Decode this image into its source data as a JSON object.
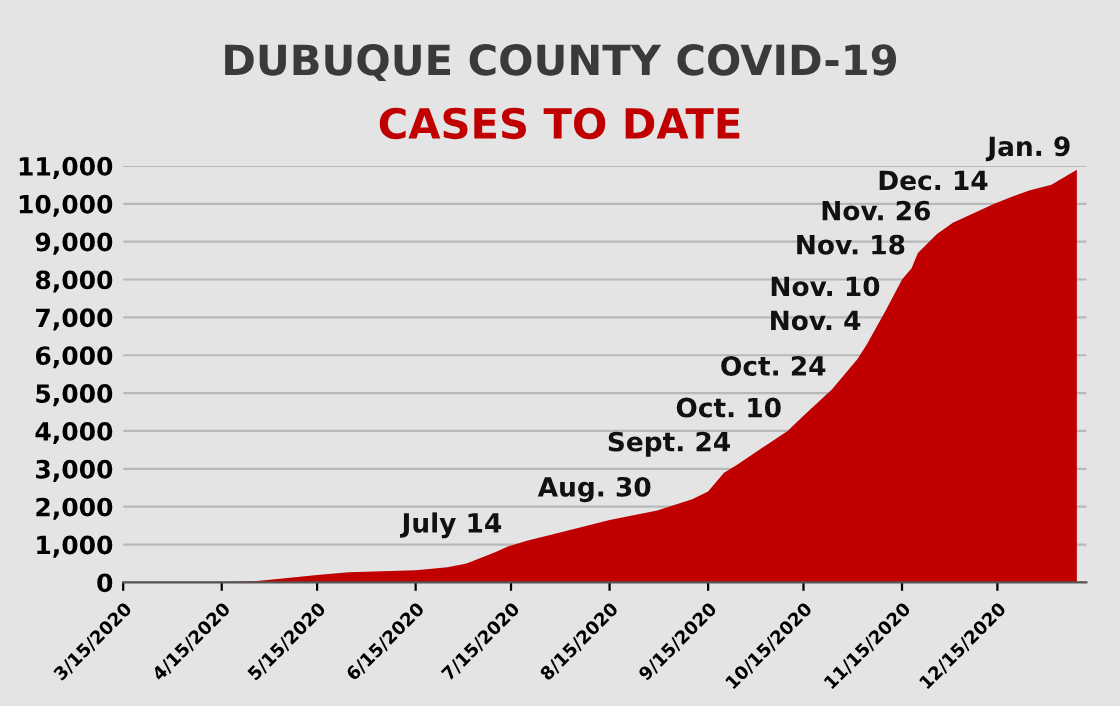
{
  "chart_data": {
    "type": "area",
    "title": "DUBUQUE COUNTY COVID-19",
    "subtitle": "CASES TO DATE",
    "x": [
      "2020-03-15",
      "2020-04-15",
      "2020-04-25",
      "2020-05-01",
      "2020-05-15",
      "2020-05-25",
      "2020-06-15",
      "2020-06-25",
      "2020-07-01",
      "2020-07-10",
      "2020-07-14",
      "2020-07-20",
      "2020-08-01",
      "2020-08-15",
      "2020-08-30",
      "2020-09-10",
      "2020-09-15",
      "2020-09-20",
      "2020-09-24",
      "2020-10-01",
      "2020-10-10",
      "2020-10-15",
      "2020-10-24",
      "2020-11-01",
      "2020-11-04",
      "2020-11-10",
      "2020-11-15",
      "2020-11-18",
      "2020-11-20",
      "2020-11-26",
      "2020-12-01",
      "2020-12-14",
      "2020-12-20",
      "2020-12-25",
      "2021-01-01",
      "2021-01-09"
    ],
    "series": [
      {
        "color": "#c00000",
        "values": [
          0,
          10,
          30,
          80,
          200,
          270,
          320,
          400,
          500,
          800,
          950,
          1100,
          1350,
          1650,
          1900,
          2200,
          2400,
          2900,
          3100,
          3500,
          4000,
          4400,
          5100,
          5900,
          6300,
          7200,
          8000,
          8300,
          8700,
          9200,
          9500,
          10000,
          10200,
          10350,
          10500,
          10900
        ]
      }
    ],
    "xlim": [
      "2020-03-15",
      "2021-01-12"
    ],
    "xticks": [
      {
        "value": "2020-03-15",
        "label": "3/15/2020"
      },
      {
        "value": "2020-04-15",
        "label": "4/15/2020"
      },
      {
        "value": "2020-05-15",
        "label": "5/15/2020"
      },
      {
        "value": "2020-06-15",
        "label": "6/15/2020"
      },
      {
        "value": "2020-07-15",
        "label": "7/15/2020"
      },
      {
        "value": "2020-08-15",
        "label": "8/15/2020"
      },
      {
        "value": "2020-09-15",
        "label": "9/15/2020"
      },
      {
        "value": "2020-10-15",
        "label": "10/15/2020"
      },
      {
        "value": "2020-11-15",
        "label": "11/15/2020"
      },
      {
        "value": "2020-12-15",
        "label": "12/15/2020"
      }
    ],
    "ylim": [
      0,
      11000
    ],
    "yticks": [
      {
        "value": 0,
        "label": "0"
      },
      {
        "value": 1000,
        "label": "1,000"
      },
      {
        "value": 2000,
        "label": "2,000"
      },
      {
        "value": 3000,
        "label": "3,000"
      },
      {
        "value": 4000,
        "label": "4,000"
      },
      {
        "value": 5000,
        "label": "5,000"
      },
      {
        "value": 6000,
        "label": "6,000"
      },
      {
        "value": 7000,
        "label": "7,000"
      },
      {
        "value": 8000,
        "label": "8,000"
      },
      {
        "value": 9000,
        "label": "9,000"
      },
      {
        "value": 10000,
        "label": "10,000"
      },
      {
        "value": 11000,
        "label": "11,000"
      }
    ],
    "grid": "y",
    "legend": false,
    "annotations": [
      {
        "text": "July 14",
        "x": "2020-07-14",
        "y": 950
      },
      {
        "text": "Aug. 30",
        "x": "2020-08-30",
        "y": 1900
      },
      {
        "text": "Sept. 24",
        "x": "2020-09-24",
        "y": 3100
      },
      {
        "text": "Oct. 10",
        "x": "2020-10-10",
        "y": 4000
      },
      {
        "text": "Oct. 24",
        "x": "2020-10-24",
        "y": 5100
      },
      {
        "text": "Nov. 4",
        "x": "2020-11-04",
        "y": 6300
      },
      {
        "text": "Nov. 10",
        "x": "2020-11-10",
        "y": 7200
      },
      {
        "text": "Nov. 18",
        "x": "2020-11-18",
        "y": 8300
      },
      {
        "text": "Nov. 26",
        "x": "2020-11-26",
        "y": 9200
      },
      {
        "text": "Dec. 14",
        "x": "2020-12-14",
        "y": 10000
      },
      {
        "text": "Jan. 9",
        "x": "2021-01-09",
        "y": 10900
      }
    ]
  }
}
